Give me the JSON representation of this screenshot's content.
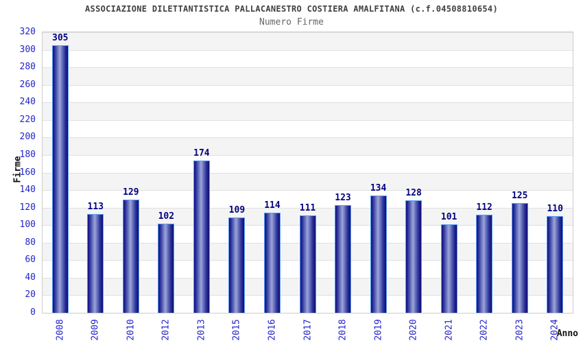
{
  "chart_data": {
    "type": "bar",
    "title": "ASSOCIAZIONE DILETTANTISTICA PALLACANESTRO COSTIERA AMALFITANA (c.f.04508810654)",
    "subtitle": "Numero Firme",
    "xlabel": "Anno",
    "ylabel": "Firme",
    "categories": [
      "2008",
      "2009",
      "2010",
      "2012",
      "2013",
      "2015",
      "2016",
      "2017",
      "2018",
      "2019",
      "2020",
      "2021",
      "2022",
      "2023",
      "2024"
    ],
    "values": [
      305,
      113,
      129,
      102,
      174,
      109,
      114,
      111,
      123,
      134,
      128,
      101,
      112,
      125,
      110
    ],
    "ylim": [
      0,
      320
    ],
    "ytick_step": 20,
    "grid": true,
    "legend_position": "none",
    "bar_value_labels_shown": true,
    "colors": {
      "bar_edge_dark": "#101080",
      "bar_center_light": "#9ba6d8",
      "bar_border": "#58a0f0",
      "tick_label": "#2222cc",
      "value_label": "#000080",
      "title": "#404040",
      "subtitle": "#666666",
      "axis_label": "#111111",
      "band_gray": "#f4f4f4",
      "gridline": "#e0e0e0",
      "plot_border": "#cccccc"
    }
  }
}
